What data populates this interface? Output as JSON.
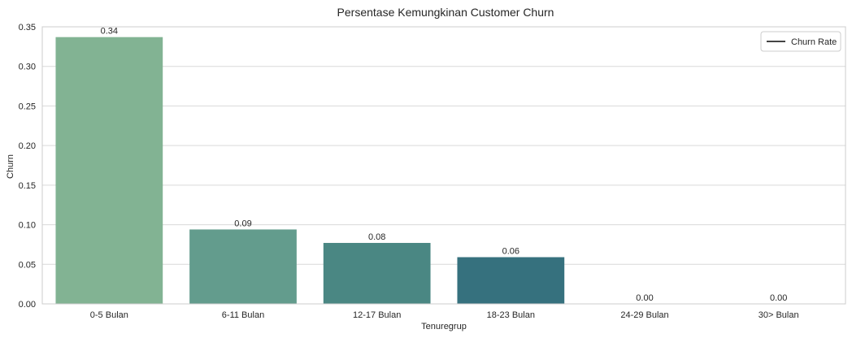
{
  "chart_data": {
    "type": "bar",
    "title": "Persentase Kemungkinan Customer Churn",
    "xlabel": "Tenuregrup",
    "ylabel": "Churn",
    "categories": [
      "0-5 Bulan",
      "6-11 Bulan",
      "12-17 Bulan",
      "18-23 Bulan",
      "24-29 Bulan",
      "30> Bulan"
    ],
    "values": [
      0.337,
      0.094,
      0.077,
      0.059,
      0.0,
      0.0
    ],
    "data_labels": [
      "0.34",
      "0.09",
      "0.08",
      "0.06",
      "0.00",
      "0.00"
    ],
    "colors": [
      "#82b393",
      "#639c8d",
      "#4a8783",
      "#36717e",
      "#2d5f73",
      "#2a4e66"
    ],
    "ylim": [
      0,
      0.35
    ],
    "yticks": [
      "0.00",
      "0.05",
      "0.10",
      "0.15",
      "0.20",
      "0.25",
      "0.30",
      "0.35"
    ],
    "grid": true,
    "legend": {
      "position": "top-right",
      "entries": [
        {
          "label": "Churn Rate",
          "color": "#444444"
        }
      ]
    }
  }
}
